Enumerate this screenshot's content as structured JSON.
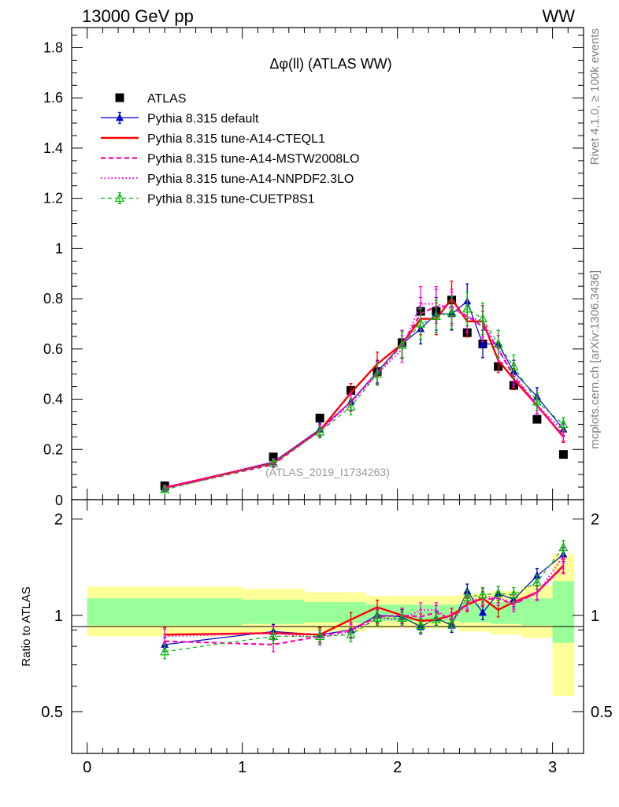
{
  "header": {
    "left": "13000 GeV pp",
    "right": "WW"
  },
  "side_text": {
    "rivet": "Rivet 4.1.0, ≥ 100k events",
    "mcplots": "mcplots.cern.ch [arXiv:1306.3436]"
  },
  "colors": {
    "atlas": "#000000",
    "default": "#0000cc",
    "cteql1": "#ff0000",
    "mstw": "#ff00aa",
    "nnpdf": "#ff00ff",
    "cuetp8s1": "#00bb00",
    "band_yellow": "#ffff99",
    "band_green": "#99ff99"
  },
  "chart_data": [
    {
      "type": "line",
      "title": "Δφ(ll) (ATLAS WW)",
      "watermark": "(ATLAS_2019_I1734263)",
      "xlabel": "",
      "ylabel": "",
      "xlim": [
        -0.1,
        3.2
      ],
      "ylim": [
        0,
        1.88
      ],
      "yticks": [
        0.2,
        0.4,
        0.6,
        0.8,
        1,
        1.2,
        1.4,
        1.6,
        1.8
      ],
      "ytick_labels": [
        "0.2",
        "0.4",
        "0.6",
        "0.8",
        "1",
        "1.2",
        "1.4",
        "1.6",
        "1.8"
      ],
      "y_zero_label": "0",
      "x": [
        0.5,
        1.2,
        1.5,
        1.7,
        1.87,
        2.03,
        2.15,
        2.25,
        2.35,
        2.45,
        2.55,
        2.65,
        2.75,
        2.9,
        3.07
      ],
      "legend_position": "top-left",
      "series": [
        {
          "name": "ATLAS",
          "style": "square",
          "values": [
            0.055,
            0.17,
            0.325,
            0.435,
            0.51,
            0.625,
            0.75,
            0.75,
            0.795,
            0.665,
            0.62,
            0.53,
            0.455,
            0.32,
            0.18
          ]
        },
        {
          "name": "Pythia 8.315 default",
          "style": "triangle",
          "values": [
            0.045,
            0.15,
            0.28,
            0.39,
            0.51,
            0.62,
            0.68,
            0.74,
            0.74,
            0.79,
            0.62,
            0.62,
            0.51,
            0.41,
            0.28
          ]
        },
        {
          "name": "Pythia 8.315 tune-A14-CTEQL1",
          "style": "solid",
          "values": [
            0.048,
            0.145,
            0.275,
            0.425,
            0.54,
            0.62,
            0.72,
            0.72,
            0.8,
            0.71,
            0.71,
            0.555,
            0.48,
            0.375,
            0.25
          ]
        },
        {
          "name": "Pythia 8.315 tune-A14-MSTW2008LO",
          "style": "dashed",
          "values": [
            0.045,
            0.14,
            0.275,
            0.39,
            0.505,
            0.62,
            0.74,
            0.77,
            0.77,
            0.73,
            0.69,
            0.6,
            0.49,
            0.375,
            0.255
          ]
        },
        {
          "name": "Pythia 8.315 tune-A14-NNPDF2.3LO",
          "style": "dotted",
          "values": [
            0.048,
            0.15,
            0.275,
            0.385,
            0.5,
            0.6,
            0.78,
            0.78,
            0.76,
            0.73,
            0.71,
            0.6,
            0.5,
            0.375,
            0.275
          ]
        },
        {
          "name": "Pythia 8.315 tune-CUETP8S1",
          "style": "dashed-triangle",
          "values": [
            0.04,
            0.145,
            0.27,
            0.37,
            0.5,
            0.615,
            0.7,
            0.73,
            0.745,
            0.76,
            0.72,
            0.62,
            0.53,
            0.39,
            0.3
          ]
        }
      ]
    },
    {
      "type": "line",
      "title": "",
      "ylabel": "Ratio to ATLAS",
      "xlim": [
        -0.1,
        3.2
      ],
      "ylim": [
        0.37,
        2.3
      ],
      "ytick_labels": [
        "2",
        "1",
        "0.5"
      ],
      "yticks": [
        2,
        1,
        0.5
      ],
      "xtick_labels": [
        "0",
        "1",
        "2",
        "3"
      ],
      "xticks": [
        0,
        1,
        2,
        3
      ],
      "x": [
        0.5,
        1.2,
        1.5,
        1.7,
        1.87,
        2.03,
        2.15,
        2.25,
        2.35,
        2.45,
        2.55,
        2.65,
        2.75,
        2.9,
        3.07
      ],
      "bands": [
        {
          "x0": 0,
          "x1": 1,
          "yellow": [
            0.86,
            1.23
          ],
          "green": [
            0.93,
            1.13
          ]
        },
        {
          "x0": 1,
          "x1": 1.4,
          "yellow": [
            0.87,
            1.21
          ],
          "green": [
            0.94,
            1.12
          ]
        },
        {
          "x0": 1.4,
          "x1": 1.8,
          "yellow": [
            0.89,
            1.18
          ],
          "green": [
            0.95,
            1.1
          ]
        },
        {
          "x0": 1.8,
          "x1": 2.4,
          "yellow": [
            0.91,
            1.15
          ],
          "green": [
            0.96,
            1.08
          ]
        },
        {
          "x0": 2.4,
          "x1": 2.6,
          "yellow": [
            0.89,
            1.17
          ],
          "green": [
            0.95,
            1.09
          ]
        },
        {
          "x0": 2.6,
          "x1": 2.8,
          "yellow": [
            0.87,
            1.19
          ],
          "green": [
            0.94,
            1.1
          ]
        },
        {
          "x0": 2.8,
          "x1": 3.0,
          "yellow": [
            0.85,
            1.24
          ],
          "green": [
            0.93,
            1.13
          ]
        },
        {
          "x0": 3.0,
          "x1": 3.14,
          "yellow": [
            0.56,
            1.55
          ],
          "green": [
            0.82,
            1.28
          ]
        }
      ],
      "series": [
        {
          "name": "Pythia 8.315 default",
          "style": "triangle",
          "values": [
            0.81,
            0.89,
            0.87,
            0.9,
            1.0,
            0.99,
            0.92,
            0.98,
            0.93,
            1.19,
            1.02,
            1.17,
            1.12,
            1.33,
            1.55
          ]
        },
        {
          "name": "Pythia 8.315 tune-A14-CTEQL1",
          "style": "solid",
          "values": [
            0.87,
            0.88,
            0.87,
            0.97,
            1.06,
            1.0,
            0.96,
            0.97,
            1.0,
            1.08,
            1.13,
            1.04,
            1.1,
            1.18,
            1.43
          ]
        },
        {
          "name": "Pythia 8.315 tune-A14-MSTW2008LO",
          "style": "dashed",
          "values": [
            0.83,
            0.81,
            0.86,
            0.9,
            0.99,
            1.0,
            0.99,
            1.02,
            0.97,
            1.1,
            1.12,
            1.13,
            1.08,
            1.18,
            1.42
          ]
        },
        {
          "name": "Pythia 8.315 tune-A14-NNPDF2.3LO",
          "style": "dotted",
          "values": [
            0.86,
            0.88,
            0.85,
            0.89,
            0.98,
            0.97,
            1.04,
            1.04,
            0.96,
            1.09,
            1.15,
            1.13,
            1.1,
            1.17,
            1.53
          ]
        },
        {
          "name": "Pythia 8.315 tune-CUETP8S1",
          "style": "dashed-triangle",
          "values": [
            0.77,
            0.86,
            0.86,
            0.87,
            0.98,
            0.98,
            0.93,
            0.97,
            0.94,
            1.14,
            1.16,
            1.17,
            1.16,
            1.27,
            1.63
          ]
        }
      ]
    }
  ]
}
